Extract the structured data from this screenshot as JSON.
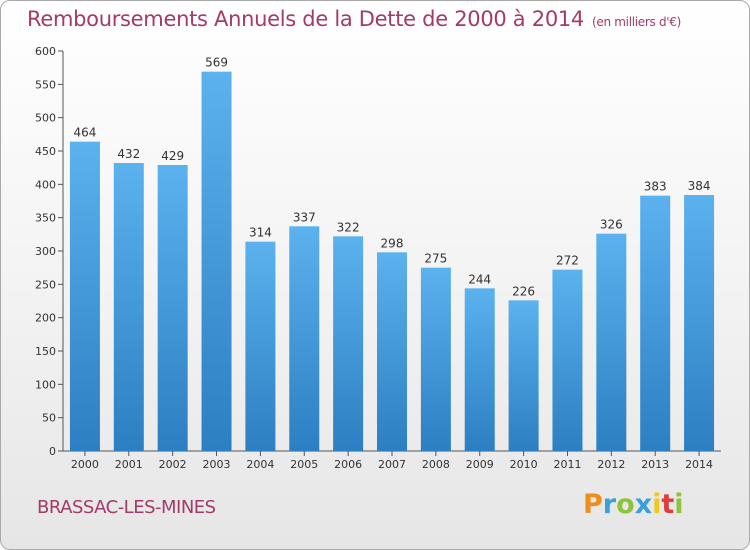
{
  "header": {
    "title": "Remboursements Annuels de la Dette de 2000 à 2014",
    "unit": "(en milliers d'€)"
  },
  "footer": {
    "commune": "BRASSAC-LES-MINES",
    "logo_text": "Proxiti"
  },
  "colors": {
    "title": "#a33a6a",
    "bar_light": "#5bb2ee",
    "bar_dark": "#2c7fc2",
    "logo_letters": [
      "#f08c1e",
      "#3aa0dc",
      "#8cc43c",
      "#3aa0dc",
      "#f0c81e",
      "#e03c3c",
      "#8cc43c"
    ]
  },
  "chart_data": {
    "type": "bar",
    "title": "Remboursements Annuels de la Dette de 2000 à 2014",
    "subtitle": "(en milliers d'€)",
    "categories": [
      "2000",
      "2001",
      "2002",
      "2003",
      "2004",
      "2005",
      "2006",
      "2007",
      "2008",
      "2009",
      "2010",
      "2011",
      "2012",
      "2013",
      "2014"
    ],
    "values": [
      464,
      432,
      429,
      569,
      314,
      337,
      322,
      298,
      275,
      244,
      226,
      272,
      326,
      383,
      384
    ],
    "ylim": [
      0,
      600
    ],
    "yticks": [
      0,
      50,
      100,
      150,
      200,
      250,
      300,
      350,
      400,
      450,
      500,
      550,
      600
    ],
    "grid": false,
    "data_labels": true
  }
}
